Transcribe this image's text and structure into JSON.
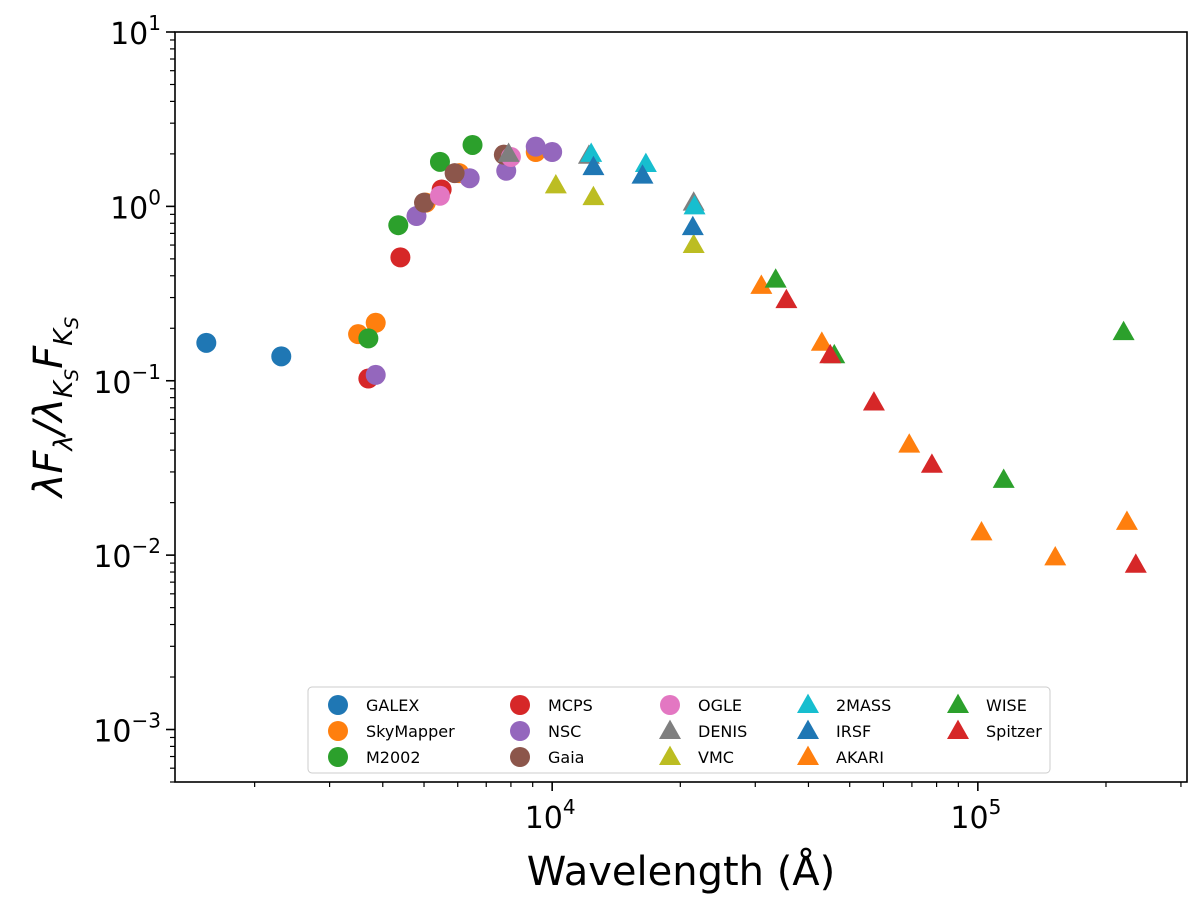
{
  "chart_data": {
    "type": "scatter",
    "xscale": "log",
    "yscale": "log",
    "xlim": [
      1300,
      310000
    ],
    "ylim": [
      0.0005,
      10
    ],
    "xlabel": "Wavelength (Å)",
    "ylabel": "λF_λ / λ_Ks F_Ks",
    "x_ticks": [
      {
        "value": 10000,
        "base": "10",
        "exp": "4"
      },
      {
        "value": 100000,
        "base": "10",
        "exp": "5"
      }
    ],
    "y_ticks": [
      {
        "value": 0.001,
        "base": "10",
        "exp": "−3"
      },
      {
        "value": 0.01,
        "base": "10",
        "exp": "−2"
      },
      {
        "value": 0.1,
        "base": "10",
        "exp": "−1"
      },
      {
        "value": 1,
        "base": "10",
        "exp": "0"
      },
      {
        "value": 10,
        "base": "10",
        "exp": "1"
      }
    ],
    "legend_position": "lower-center",
    "series": [
      {
        "name": "GALEX",
        "color": "#1f77b4",
        "marker": "circle",
        "points": [
          [
            1540,
            0.165
          ],
          [
            2310,
            0.138
          ]
        ]
      },
      {
        "name": "SkyMapper",
        "color": "#ff7f0e",
        "marker": "circle",
        "points": [
          [
            3500,
            0.185
          ],
          [
            3850,
            0.215
          ],
          [
            5050,
            1.05
          ],
          [
            6050,
            1.55
          ],
          [
            9150,
            2.05
          ]
        ]
      },
      {
        "name": "M2002",
        "color": "#2ca02c",
        "marker": "circle",
        "points": [
          [
            3700,
            0.175
          ],
          [
            4350,
            0.78
          ],
          [
            5450,
            1.8
          ],
          [
            6500,
            2.25
          ]
        ]
      },
      {
        "name": "MCPS",
        "color": "#d62728",
        "marker": "circle",
        "points": [
          [
            3700,
            0.103
          ],
          [
            4400,
            0.51
          ],
          [
            5500,
            1.25
          ]
        ]
      },
      {
        "name": "NSC",
        "color": "#9467bd",
        "marker": "circle",
        "points": [
          [
            3850,
            0.108
          ],
          [
            4800,
            0.88
          ],
          [
            6400,
            1.45
          ],
          [
            7800,
            1.6
          ],
          [
            9150,
            2.2
          ],
          [
            10000,
            2.05
          ]
        ]
      },
      {
        "name": "Gaia",
        "color": "#8c564b",
        "marker": "circle",
        "points": [
          [
            5000,
            1.05
          ],
          [
            5900,
            1.55
          ],
          [
            7700,
            1.98
          ]
        ]
      },
      {
        "name": "OGLE",
        "color": "#e377c2",
        "marker": "circle",
        "points": [
          [
            5450,
            1.15
          ],
          [
            8000,
            1.92
          ]
        ]
      },
      {
        "name": "DENIS",
        "color": "#7f7f7f",
        "marker": "triangle",
        "points": [
          [
            7900,
            2.0
          ],
          [
            12200,
            1.95
          ],
          [
            21500,
            1.05
          ]
        ]
      },
      {
        "name": "VMC",
        "color": "#bcbd22",
        "marker": "triangle",
        "points": [
          [
            10200,
            1.32
          ],
          [
            12500,
            1.13
          ],
          [
            21500,
            0.6
          ]
        ]
      },
      {
        "name": "2MASS",
        "color": "#17becf",
        "marker": "triangle",
        "points": [
          [
            12350,
            2.0
          ],
          [
            16600,
            1.75
          ],
          [
            21600,
            1.0
          ]
        ]
      },
      {
        "name": "IRSF",
        "color": "#1f77b4",
        "marker": "triangle",
        "points": [
          [
            12500,
            1.68
          ],
          [
            16300,
            1.5
          ],
          [
            21400,
            0.76
          ]
        ]
      },
      {
        "name": "AKARI",
        "color": "#ff7f0e",
        "marker": "triangle",
        "points": [
          [
            31000,
            0.35
          ],
          [
            43000,
            0.165
          ],
          [
            69000,
            0.043
          ],
          [
            102000,
            0.0135
          ],
          [
            152000,
            0.0097
          ],
          [
            224000,
            0.0155
          ]
        ]
      },
      {
        "name": "WISE",
        "color": "#2ca02c",
        "marker": "triangle",
        "points": [
          [
            33500,
            0.38
          ],
          [
            46000,
            0.14
          ],
          [
            115000,
            0.027
          ],
          [
            220000,
            0.19
          ]
        ]
      },
      {
        "name": "Spitzer",
        "color": "#d62728",
        "marker": "triangle",
        "points": [
          [
            35500,
            0.29
          ],
          [
            45000,
            0.14
          ],
          [
            57000,
            0.075
          ],
          [
            78000,
            0.033
          ],
          [
            235000,
            0.0088
          ]
        ]
      }
    ]
  }
}
